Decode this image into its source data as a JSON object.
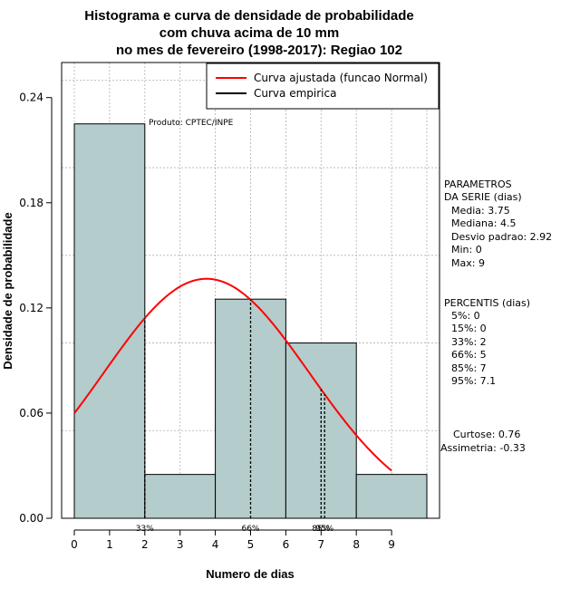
{
  "chart_data": {
    "type": "histogram",
    "title_lines": [
      "Histograma e curva de densidade de probabilidade",
      "com chuva acima de 10 mm",
      "no mes de fevereiro (1998-2017): Regiao 102"
    ],
    "xlabel": "Numero de dias",
    "ylabel": "Densidade de probabilidade",
    "xlim": [
      -0.36,
      10.36
    ],
    "ylim": [
      0,
      0.26
    ],
    "x_ticks": [
      0,
      1,
      2,
      3,
      4,
      5,
      6,
      7,
      8,
      9
    ],
    "y_ticks": [
      0.0,
      0.06,
      0.12,
      0.18,
      0.24
    ],
    "y_tick_labels": [
      "0.00",
      "0.06",
      "0.12",
      "0.18",
      "0.24"
    ],
    "x_gridlines": [
      0,
      1,
      2,
      3,
      4,
      5,
      6,
      7,
      8,
      9,
      10
    ],
    "y_gridlines": [
      0,
      0.05,
      0.1,
      0.15,
      0.2,
      0.25
    ],
    "bins": [
      {
        "x0": 0,
        "x1": 2,
        "density": 0.225
      },
      {
        "x0": 2,
        "x1": 4,
        "density": 0.025
      },
      {
        "x0": 4,
        "x1": 6,
        "density": 0.125
      },
      {
        "x0": 6,
        "x1": 8,
        "density": 0.1
      },
      {
        "x0": 8,
        "x1": 10,
        "density": 0.025
      }
    ],
    "bar_color": "#b4cccc",
    "normal_curve": {
      "mean": 3.75,
      "sd": 2.92,
      "x_from": 0,
      "x_to": 9,
      "color": "#ff0000"
    },
    "percentile_markers": [
      {
        "x": 2,
        "label": "33%"
      },
      {
        "x": 5,
        "label": "66%"
      },
      {
        "x": 7,
        "label": "85%"
      },
      {
        "x": 7.1,
        "label": "95%"
      }
    ],
    "legend": {
      "entries": [
        {
          "label": "Curva ajustada (funcao Normal)",
          "color": "#ff0000"
        },
        {
          "label": "Curva empirica",
          "color": "#000000"
        }
      ],
      "position": "top-right"
    },
    "annotation": "Produto: CPTEC/INPE"
  },
  "stats": {
    "params_title_1": "PARAMETROS",
    "params_title_2": "DA SERIE (dias)",
    "media": "Media: 3.75",
    "mediana": "Mediana: 4.5",
    "desvio": "Desvio padrao: 2.92",
    "min": "Min: 0",
    "max": "Max: 9",
    "percentis_title": "PERCENTIS (dias)",
    "p5": "5%: 0",
    "p15": "15%: 0",
    "p33": "33%: 2",
    "p66": "66%: 5",
    "p85": "85%: 7",
    "p95": "95%: 7.1",
    "curtose": "Curtose: 0.76",
    "assimetria": "Assimetria: -0.33"
  }
}
